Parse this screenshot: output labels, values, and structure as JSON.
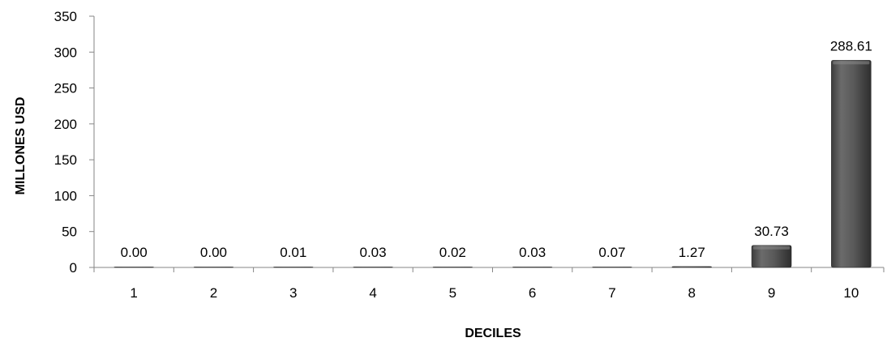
{
  "chart_data": {
    "type": "bar",
    "title": "",
    "xlabel": "DECILES",
    "ylabel": "MILLONES USD",
    "categories": [
      "1",
      "2",
      "3",
      "4",
      "5",
      "6",
      "7",
      "8",
      "9",
      "10"
    ],
    "values": [
      0.0,
      0.0,
      0.01,
      0.03,
      0.02,
      0.03,
      0.07,
      1.27,
      30.73,
      288.61
    ],
    "data_labels": [
      "0.00",
      "0.00",
      "0.01",
      "0.03",
      "0.02",
      "0.03",
      "0.07",
      "1.27",
      "30.73",
      "288.61"
    ],
    "ylim": [
      0,
      350
    ],
    "yticks": [
      0,
      50,
      100,
      150,
      200,
      250,
      300,
      350
    ],
    "grid": false,
    "legend": "none",
    "bar_color": "#555555"
  }
}
